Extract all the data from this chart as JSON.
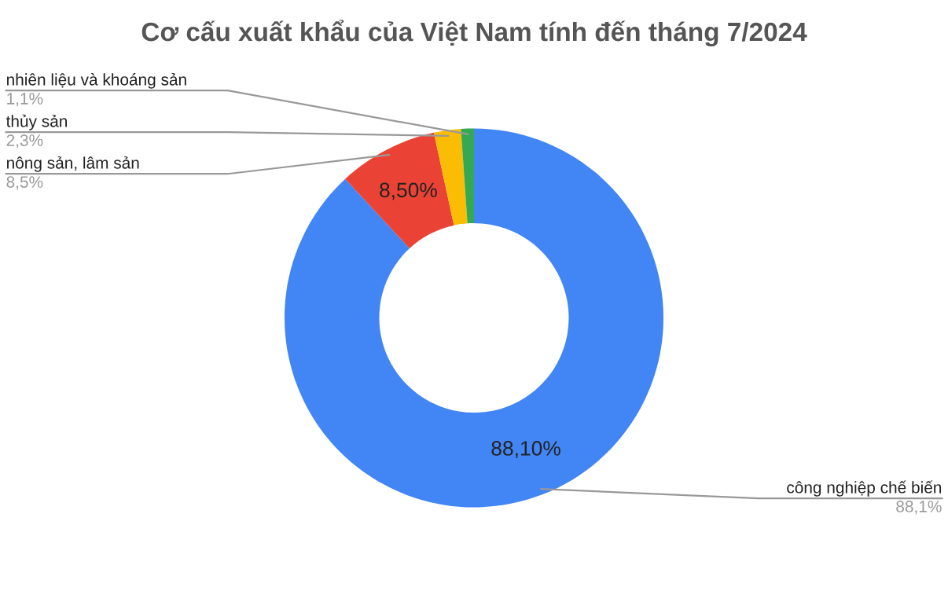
{
  "chart_data": {
    "type": "donut",
    "title": "Cơ cấu xuất khẩu của Việt Nam tính đến tháng 7/2024",
    "categories": [
      "công nghiệp chế biến",
      "nông sản, lâm sản",
      "thủy sản",
      "nhiên liệu và khoáng sản"
    ],
    "values": [
      88.1,
      8.5,
      2.3,
      1.1
    ],
    "colors": [
      "#4285f4",
      "#ea4335",
      "#fbbc04",
      "#34a853"
    ],
    "value_labels": [
      "88,10%",
      "8,50%",
      null,
      null
    ],
    "annotations": [
      {
        "text": "88,1%",
        "x": "công nghiệp chế biến"
      },
      {
        "text": "8,5%",
        "x": "nông sản, lâm sản"
      },
      {
        "text": "2,3%",
        "x": "thủy sản"
      },
      {
        "text": "1,1%",
        "x": "nhiên liệu và khoáng sản"
      }
    ]
  }
}
